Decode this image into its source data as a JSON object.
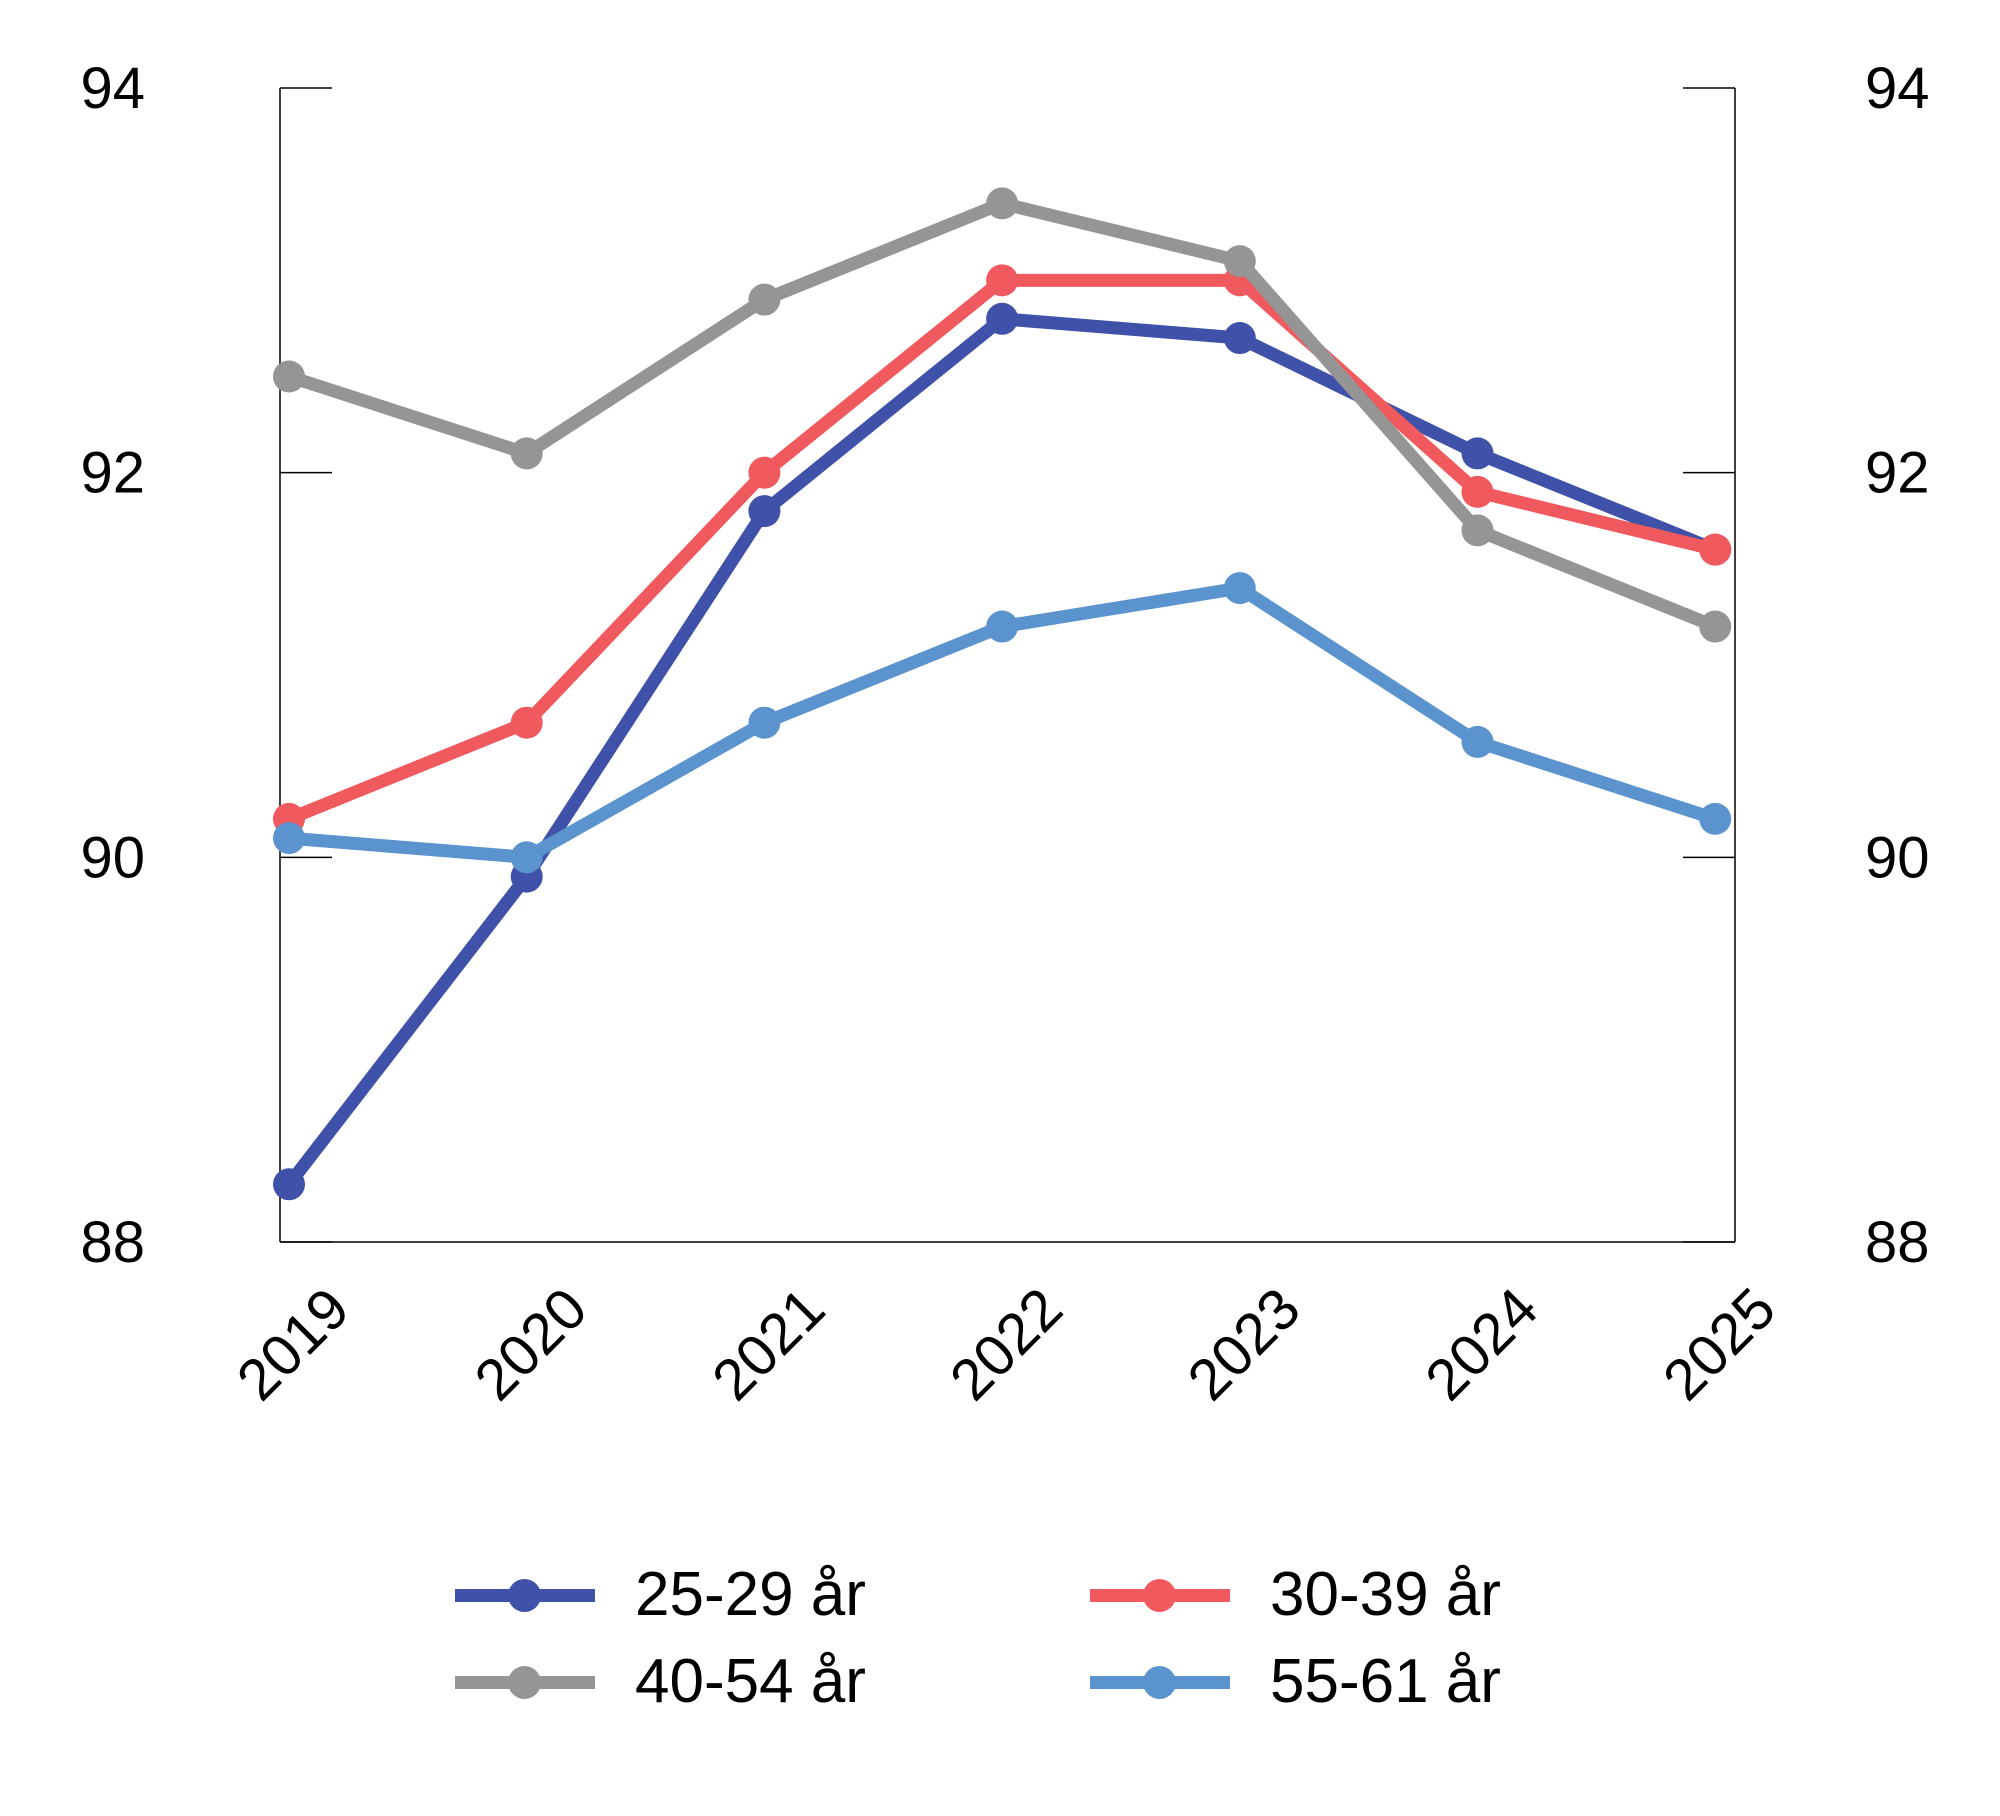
{
  "chart_data": {
    "type": "line",
    "title": "",
    "xlabel": "",
    "ylabel": "",
    "x": [
      "2019",
      "2020",
      "2021",
      "2022",
      "2023",
      "2024",
      "2025"
    ],
    "ylim": [
      88,
      94
    ],
    "yticks": [
      88,
      90,
      92,
      94
    ],
    "y2ticks": [
      88,
      90,
      92,
      94
    ],
    "grid": false,
    "legend_position": "bottom",
    "series": [
      {
        "name": "25-29 år",
        "color": "#3f51a8",
        "values": [
          88.3,
          89.9,
          91.8,
          92.8,
          92.7,
          92.1,
          91.6
        ]
      },
      {
        "name": "30-39 år",
        "color": "#f05a5f",
        "values": [
          90.2,
          90.7,
          92.0,
          93.0,
          93.0,
          91.9,
          91.6
        ]
      },
      {
        "name": "40-54 år",
        "color": "#959595",
        "values": [
          92.5,
          92.1,
          92.9,
          93.4,
          93.1,
          91.7,
          91.2
        ]
      },
      {
        "name": "55-61 år",
        "color": "#5b93cf",
        "values": [
          90.1,
          90.0,
          90.7,
          91.2,
          91.4,
          90.6,
          90.2
        ]
      }
    ]
  }
}
